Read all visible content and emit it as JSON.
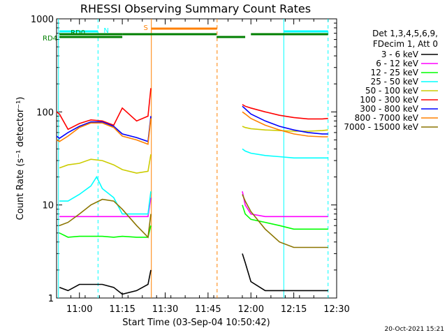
{
  "chart_data": {
    "type": "line",
    "title": "RHESSI Observing Summary Count Rates",
    "xlabel": "Start Time (03-Sep-04 10:50:42)",
    "ylabel": "Count Rate (s⁻¹ detector⁻¹)",
    "y_scale": "log",
    "ylim": [
      1,
      1000
    ],
    "xlim": [
      "10:52",
      "12:30"
    ],
    "x_ticks": [
      "11:00",
      "11:15",
      "11:30",
      "11:45",
      "12:00",
      "12:15",
      "12:30"
    ],
    "y_ticks": [
      "1",
      "10",
      "100",
      "1000"
    ],
    "legend": {
      "placement": "right",
      "header": [
        "Det 1,3,4,5,6,9,",
        "FDecim 1, Att 0"
      ]
    },
    "series": [
      {
        "name": "3 - 6 keV",
        "color": "#000000",
        "segments": [
          {
            "x": [
              "10:53",
              "10:56",
              "11:00",
              "11:04",
              "11:08",
              "11:12",
              "11:15",
              "11:20",
              "11:24",
              "11:25"
            ],
            "y": [
              1.3,
              1.2,
              1.4,
              1.4,
              1.4,
              1.3,
              1.1,
              1.2,
              1.4,
              2
            ]
          },
          {
            "x": [
              "11:57",
              "11:58",
              "12:00",
              "12:05",
              "12:10",
              "12:15",
              "12:20",
              "12:25",
              "12:27"
            ],
            "y": [
              3,
              2.4,
              1.5,
              1.2,
              1.2,
              1.2,
              1.2,
              1.2,
              1.2
            ]
          }
        ]
      },
      {
        "name": "6 - 12 keV",
        "color": "#ff00ff",
        "segments": [
          {
            "x": [
              "10:53",
              "10:56",
              "11:00",
              "11:04",
              "11:08",
              "11:12",
              "11:15",
              "11:20",
              "11:24",
              "11:25"
            ],
            "y": [
              7.5,
              7.5,
              7.5,
              7.5,
              7.5,
              7.5,
              7.5,
              7.5,
              7.5,
              12
            ]
          },
          {
            "x": [
              "11:57",
              "11:58",
              "12:00",
              "12:05",
              "12:10",
              "12:15",
              "12:20",
              "12:25",
              "12:27"
            ],
            "y": [
              14,
              10,
              8,
              7.5,
              7.5,
              7.5,
              7.5,
              7.5,
              7.5
            ]
          }
        ]
      },
      {
        "name": "12 - 25 keV",
        "color": "#00ff00",
        "segments": [
          {
            "x": [
              "10:53",
              "10:56",
              "11:00",
              "11:04",
              "11:08",
              "11:12",
              "11:15",
              "11:20",
              "11:24",
              "11:25"
            ],
            "y": [
              5,
              4.5,
              4.6,
              4.6,
              4.6,
              4.5,
              4.6,
              4.5,
              4.5,
              6
            ]
          },
          {
            "x": [
              "11:57",
              "11:58",
              "12:00",
              "12:05",
              "12:10",
              "12:15",
              "12:20",
              "12:25",
              "12:27"
            ],
            "y": [
              10,
              8,
              7,
              6.5,
              6,
              5.5,
              5.5,
              5.5,
              5.5
            ]
          }
        ]
      },
      {
        "name": "25 - 50 keV",
        "color": "#00ffff",
        "segments": [
          {
            "x": [
              "10:53",
              "10:56",
              "11:00",
              "11:04",
              "11:06",
              "11:08",
              "11:12",
              "11:15",
              "11:20",
              "11:24",
              "11:25"
            ],
            "y": [
              11,
              11,
              13,
              16,
              20,
              15,
              12,
              8,
              8,
              8,
              14
            ]
          },
          {
            "x": [
              "11:57",
              "11:58",
              "12:00",
              "12:05",
              "12:10",
              "12:15",
              "12:20",
              "12:25",
              "12:27"
            ],
            "y": [
              40,
              38,
              36,
              34,
              33,
              32,
              32,
              32,
              32
            ]
          }
        ]
      },
      {
        "name": "50 - 100 keV",
        "color": "#cccc00",
        "segments": [
          {
            "x": [
              "10:53",
              "10:56",
              "11:00",
              "11:04",
              "11:08",
              "11:12",
              "11:15",
              "11:20",
              "11:24",
              "11:25"
            ],
            "y": [
              25,
              27,
              28,
              31,
              30,
              27,
              24,
              22,
              23,
              35
            ]
          },
          {
            "x": [
              "11:57",
              "11:58",
              "12:00",
              "12:05",
              "12:10",
              "12:15",
              "12:20",
              "12:25",
              "12:27"
            ],
            "y": [
              70,
              68,
              66,
              64,
              63,
              62,
              62,
              63,
              64
            ]
          }
        ]
      },
      {
        "name": "100 - 300 keV",
        "color": "#ff0000",
        "segments": [
          {
            "x": [
              "10:52",
              "10:53",
              "10:56",
              "11:00",
              "11:04",
              "11:08",
              "11:12",
              "11:15",
              "11:20",
              "11:24",
              "11:25"
            ],
            "y": [
              100,
              95,
              65,
              75,
              82,
              80,
              72,
              110,
              80,
              90,
              180
            ]
          },
          {
            "x": [
              "11:57",
              "11:58",
              "12:00",
              "12:05",
              "12:10",
              "12:15",
              "12:20",
              "12:25",
              "12:27"
            ],
            "y": [
              120,
              115,
              110,
              100,
              92,
              87,
              84,
              84,
              85
            ]
          }
        ]
      },
      {
        "name": "300 - 800 keV",
        "color": "#0000ff",
        "segments": [
          {
            "x": [
              "10:52",
              "10:53",
              "10:56",
              "11:00",
              "11:04",
              "11:08",
              "11:12",
              "11:15",
              "11:20",
              "11:24",
              "11:25"
            ],
            "y": [
              55,
              52,
              60,
              70,
              78,
              78,
              70,
              58,
              53,
              48,
              90
            ]
          },
          {
            "x": [
              "11:57",
              "11:58",
              "12:00",
              "12:05",
              "12:10",
              "12:15",
              "12:20",
              "12:25",
              "12:27"
            ],
            "y": [
              115,
              108,
              95,
              80,
              70,
              64,
              60,
              58,
              58
            ]
          }
        ]
      },
      {
        "name": "800 - 7000 keV",
        "color": "#ff8000",
        "segments": [
          {
            "x": [
              "10:52",
              "10:53",
              "10:56",
              "11:00",
              "11:04",
              "11:08",
              "11:12",
              "11:15",
              "11:20",
              "11:24",
              "11:25"
            ],
            "y": [
              50,
              48,
              55,
              68,
              76,
              76,
              68,
              55,
              50,
              45,
              85
            ]
          },
          {
            "x": [
              "11:57",
              "11:58",
              "12:00",
              "12:05",
              "12:10",
              "12:15",
              "12:20",
              "12:25",
              "12:27"
            ],
            "y": [
              100,
              95,
              85,
              72,
              64,
              58,
              55,
              54,
              54
            ]
          }
        ]
      },
      {
        "name": "7000 - 15000 keV",
        "color": "#8b7500",
        "segments": [
          {
            "x": [
              "10:53",
              "10:56",
              "11:00",
              "11:04",
              "11:08",
              "11:12",
              "11:15",
              "11:20",
              "11:24",
              "11:25"
            ],
            "y": [
              6,
              6.5,
              8,
              10,
              11.5,
              11,
              9,
              6,
              4.5,
              8
            ]
          },
          {
            "x": [
              "11:57",
              "11:58",
              "12:00",
              "12:05",
              "12:10",
              "12:15",
              "12:20",
              "12:25",
              "12:27"
            ],
            "y": [
              13,
              11,
              8.5,
              5.5,
              4,
              3.5,
              3.5,
              3.5,
              3.5
            ]
          }
        ]
      }
    ],
    "vertical_lines": [
      {
        "x": "10:52:40",
        "color": "#00ffff",
        "style": "solid"
      },
      {
        "x": "11:06:30",
        "color": "#00ffff",
        "style": "dashed"
      },
      {
        "x": "11:25:10",
        "color": "#ff8000",
        "style": "solid"
      },
      {
        "x": "11:48:10",
        "color": "#ff8000",
        "style": "dashed"
      },
      {
        "x": "12:11:30",
        "color": "#00ffff",
        "style": "solid"
      },
      {
        "x": "12:27:00",
        "color": "#00ffff",
        "style": "dashed"
      }
    ],
    "flag_bars": [
      {
        "label": "N",
        "color": "#00ffff",
        "level": 2,
        "segments": [
          [
            "10:53",
            "11:06:30"
          ],
          [
            "12:11:30",
            "12:27"
          ]
        ]
      },
      {
        "label": "S",
        "color": "#ff8000",
        "level": 0,
        "segments": [
          [
            "11:25:10",
            "11:48:10"
          ]
        ]
      },
      {
        "label": "RD0",
        "color": "#007f00",
        "level": 4,
        "segments": [
          [
            "10:53",
            "11:15"
          ],
          [
            "11:15",
            "11:48"
          ],
          [
            "12:00",
            "12:27"
          ]
        ]
      },
      {
        "label": "RD4",
        "color": "#007f00",
        "level": 6,
        "segments": [
          [
            "10:53",
            "11:15"
          ],
          [
            "11:48",
            "11:58"
          ]
        ]
      }
    ]
  },
  "timestamp": "20-Oct-2021 15:21"
}
